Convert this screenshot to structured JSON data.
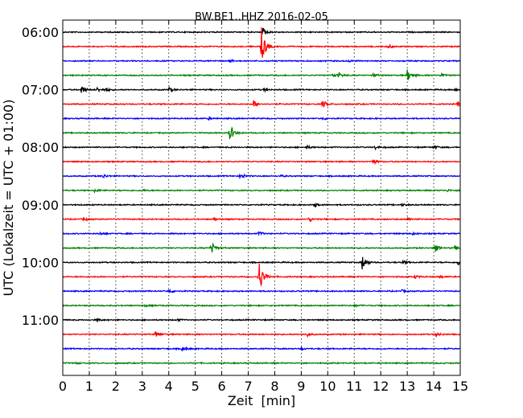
{
  "chart_data": {
    "type": "line",
    "title": "BW.BE1..HHZ 2016-02-05",
    "xlabel": "Zeit  [min]",
    "ylabel": "UTC (Lokalzeit = UTC + 01:00)",
    "xlim": [
      0,
      15
    ],
    "x_ticks": [
      "0",
      "1",
      "2",
      "3",
      "4",
      "5",
      "6",
      "7",
      "8",
      "9",
      "10",
      "11",
      "12",
      "13",
      "14",
      "15"
    ],
    "y_ticks": [
      {
        "label": "06:00",
        "trace": 0
      },
      {
        "label": "07:00",
        "trace": 4
      },
      {
        "label": "08:00",
        "trace": 8
      },
      {
        "label": "09:00",
        "trace": 12
      },
      {
        "label": "10:00",
        "trace": 16
      },
      {
        "label": "11:00",
        "trace": 20
      }
    ],
    "trace_interval_minutes": 15,
    "color_cycle": [
      "#000000",
      "#ff0000",
      "#0000ff",
      "#008000"
    ],
    "grid": "vertical dotted",
    "traces": [
      {
        "start": "06:00",
        "events": [
          [
            7.55,
            0.55
          ]
        ]
      },
      {
        "start": "06:15",
        "events": [
          [
            7.5,
            2.6
          ],
          [
            12.3,
            0.25
          ]
        ]
      },
      {
        "start": "06:30",
        "events": [
          [
            6.3,
            0.2
          ],
          [
            10.8,
            0.15
          ]
        ]
      },
      {
        "start": "06:45",
        "events": [
          [
            10.2,
            0.35
          ],
          [
            10.4,
            0.3
          ],
          [
            11.7,
            0.25
          ],
          [
            13.0,
            0.9
          ],
          [
            14.3,
            0.3
          ]
        ]
      },
      {
        "start": "07:00",
        "events": [
          [
            0.7,
            0.6
          ],
          [
            1.3,
            0.3
          ],
          [
            1.6,
            0.3
          ],
          [
            4.0,
            0.3
          ],
          [
            7.6,
            0.2
          ],
          [
            14.8,
            0.15
          ]
        ]
      },
      {
        "start": "07:15",
        "events": [
          [
            7.2,
            0.5
          ],
          [
            9.8,
            0.6
          ],
          [
            14.9,
            0.5
          ]
        ]
      },
      {
        "start": "07:30",
        "events": [
          [
            5.5,
            0.2
          ],
          [
            9.8,
            0.15
          ]
        ]
      },
      {
        "start": "07:45",
        "events": [
          [
            6.3,
            1.3
          ]
        ]
      },
      {
        "start": "08:00",
        "events": [
          [
            9.2,
            0.2
          ],
          [
            11.8,
            0.25
          ],
          [
            14.0,
            0.25
          ]
        ]
      },
      {
        "start": "08:15",
        "events": [
          [
            11.7,
            0.35
          ]
        ]
      },
      {
        "start": "08:30",
        "events": [
          [
            1.5,
            0.3
          ],
          [
            6.7,
            0.5
          ],
          [
            8.2,
            0.1
          ]
        ]
      },
      {
        "start": "08:45",
        "events": [
          [
            1.2,
            0.2
          ],
          [
            3.0,
            0.15
          ],
          [
            14.5,
            0.15
          ]
        ]
      },
      {
        "start": "09:00",
        "events": [
          [
            9.5,
            0.3
          ],
          [
            12.8,
            0.15
          ]
        ]
      },
      {
        "start": "09:15",
        "events": [
          [
            0.8,
            0.2
          ],
          [
            5.7,
            0.2
          ],
          [
            9.3,
            0.3
          ],
          [
            13.0,
            0.2
          ]
        ]
      },
      {
        "start": "09:30",
        "events": [
          [
            1.4,
            0.2
          ],
          [
            7.4,
            0.3
          ],
          [
            13.2,
            0.15
          ]
        ]
      },
      {
        "start": "09:45",
        "events": [
          [
            5.6,
            0.9
          ],
          [
            14.0,
            0.7
          ],
          [
            14.8,
            0.3
          ]
        ]
      },
      {
        "start": "10:00",
        "events": [
          [
            11.3,
            1.1
          ],
          [
            12.8,
            0.3
          ],
          [
            14.9,
            0.4
          ]
        ]
      },
      {
        "start": "10:15",
        "events": [
          [
            7.4,
            2.5
          ],
          [
            13.3,
            0.2
          ],
          [
            14.2,
            0.2
          ]
        ]
      },
      {
        "start": "10:30",
        "events": [
          [
            4.0,
            0.3
          ],
          [
            12.8,
            0.15
          ]
        ]
      },
      {
        "start": "10:45",
        "events": [
          [
            3.1,
            0.15
          ],
          [
            11.0,
            0.15
          ]
        ]
      },
      {
        "start": "11:00",
        "events": [
          [
            1.3,
            0.15
          ],
          [
            4.3,
            0.15
          ]
        ]
      },
      {
        "start": "11:15",
        "events": [
          [
            3.5,
            0.45
          ],
          [
            9.2,
            0.3
          ],
          [
            14.1,
            0.3
          ]
        ]
      },
      {
        "start": "11:30",
        "events": [
          [
            4.5,
            0.3
          ],
          [
            9.0,
            0.15
          ]
        ]
      },
      {
        "start": "11:45",
        "events": [
          [
            0.5,
            0.1
          ]
        ]
      }
    ]
  }
}
